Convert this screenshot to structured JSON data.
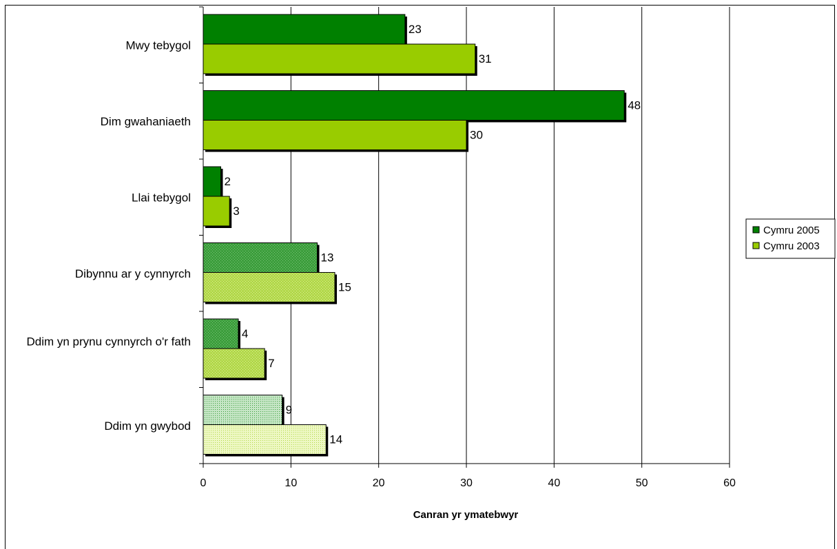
{
  "chart_data": {
    "type": "bar",
    "orientation": "horizontal",
    "categories": [
      "Mwy tebygol",
      "Dim gwahaniaeth",
      "Llai tebygol",
      "Dibynnu ar y cynnyrch",
      "Ddim yn prynu cynnyrch o'r fath",
      "Ddim yn gwybod"
    ],
    "series": [
      {
        "name": "Cymru 2005",
        "values": [
          23,
          48,
          2,
          13,
          4,
          9
        ],
        "color": "#008000"
      },
      {
        "name": "Cymru 2003",
        "values": [
          31,
          30,
          3,
          15,
          7,
          14
        ],
        "color": "#99cc00"
      }
    ],
    "xlabel": "Canran yr ymatebwyr",
    "ylabel": "",
    "xlim": [
      0,
      60
    ],
    "xticks": [
      "0",
      "10",
      "20",
      "30",
      "40",
      "50",
      "60"
    ],
    "grid": "vertical",
    "legend_position": "right",
    "data_labels": true
  }
}
